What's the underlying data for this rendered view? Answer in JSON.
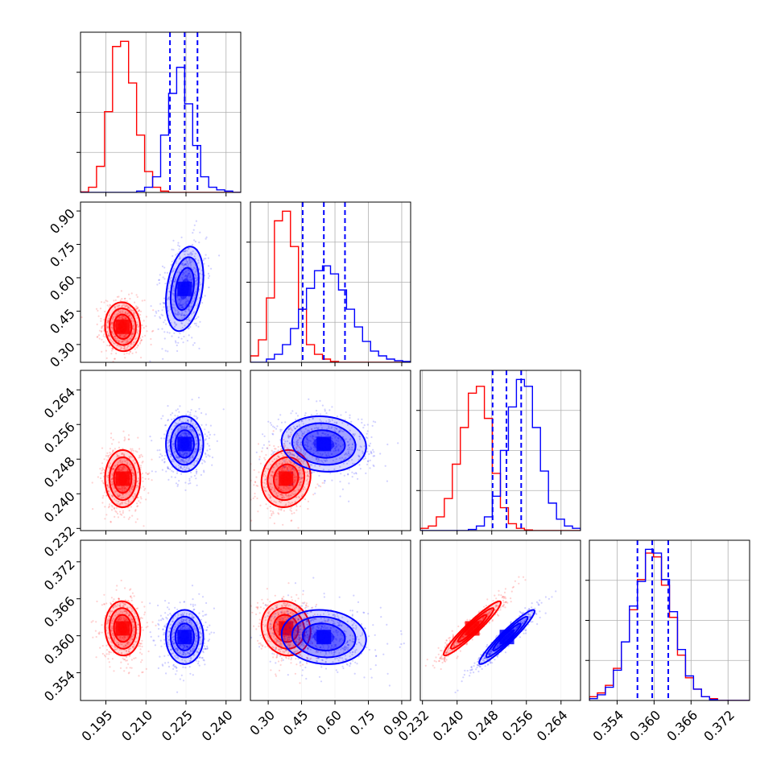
{
  "chart_data": {
    "type": "corner",
    "colors": {
      "red": "#ff0000",
      "blue": "#0000ff",
      "grid": "#b0b0b0"
    },
    "parameters": [
      {
        "range": [
          0.1855,
          0.2455
        ],
        "ticks": [
          "0.195",
          "0.210",
          "0.225",
          "0.240"
        ],
        "tick_values": [
          0.195,
          0.21,
          0.225,
          0.24
        ]
      },
      {
        "range": [
          0.22,
          0.94
        ],
        "ticks": [
          "0.30",
          "0.45",
          "0.60",
          "0.75",
          "0.90"
        ],
        "tick_values": [
          0.3,
          0.45,
          0.6,
          0.75,
          0.9
        ]
      },
      {
        "range": [
          0.2315,
          0.2685
        ],
        "ticks": [
          "0.232",
          "0.240",
          "0.248",
          "0.256",
          "0.264"
        ],
        "tick_values": [
          0.232,
          0.24,
          0.248,
          0.256,
          0.264
        ]
      },
      {
        "range": [
          0.3495,
          0.3755
        ],
        "ticks": [
          "0.354",
          "0.360",
          "0.366",
          "0.372"
        ],
        "tick_values": [
          0.354,
          0.36,
          0.366,
          0.372
        ]
      }
    ],
    "series": [
      {
        "color": "red",
        "mean": [
          0.2013,
          0.38,
          0.2435,
          0.3612
        ],
        "sd": [
          0.0033,
          0.055,
          0.0033,
          0.0022
        ],
        "corr": [
          [
            0,
            1,
            -0.05
          ],
          [
            0,
            2,
            0.0
          ],
          [
            1,
            2,
            0.1
          ],
          [
            0,
            3,
            -0.05
          ],
          [
            1,
            3,
            -0.1
          ],
          [
            2,
            3,
            0.95
          ]
        ],
        "hist": [
          [
            0.2,
            2,
            10,
            31,
            56,
            58,
            42,
            22,
            8,
            2,
            0.5,
            0,
            0,
            0,
            0,
            0,
            0,
            0,
            0,
            0
          ],
          [
            4,
            14,
            40,
            88,
            94,
            72,
            33,
            11,
            5,
            2,
            0.5,
            0,
            0,
            0,
            0,
            0,
            0,
            0,
            0,
            0
          ],
          [
            1,
            2,
            6,
            14,
            29,
            45,
            60,
            63,
            49,
            25,
            10,
            3,
            1,
            0.3,
            0,
            0,
            0,
            0,
            0,
            0
          ],
          [
            2,
            4,
            8,
            17,
            31,
            48,
            64,
            78,
            76,
            61,
            44,
            24,
            12,
            6,
            2,
            1,
            0,
            0,
            0,
            0
          ]
        ]
      },
      {
        "color": "blue",
        "mean": [
          0.2245,
          0.55,
          0.2515,
          0.3598
        ],
        "sd": [
          0.0035,
          0.095,
          0.0032,
          0.0022
        ],
        "corr": [
          [
            0,
            1,
            0.3
          ],
          [
            0,
            2,
            0.0
          ],
          [
            1,
            2,
            -0.1
          ],
          [
            0,
            3,
            0.0
          ],
          [
            1,
            3,
            -0.1
          ],
          [
            2,
            3,
            0.95
          ]
        ],
        "hist": [
          [
            0,
            0,
            0,
            0,
            0,
            0,
            0,
            0.5,
            2,
            6,
            22,
            38,
            48,
            34,
            18,
            6,
            2,
            1,
            0.5,
            0
          ],
          [
            0,
            0,
            2,
            5,
            11,
            21,
            33,
            46,
            57,
            60,
            55,
            45,
            33,
            22,
            13,
            7,
            4,
            2,
            1,
            0.5
          ],
          [
            0,
            0,
            0,
            0,
            0,
            0,
            0.5,
            2,
            6,
            15,
            35,
            54,
            66,
            63,
            45,
            26,
            12,
            5,
            2,
            1
          ],
          [
            1,
            3,
            7,
            16,
            31,
            50,
            63,
            80,
            78,
            64,
            47,
            27,
            13,
            6,
            2,
            0.5,
            0,
            0,
            0,
            0
          ]
        ],
        "quantiles": [
          [
            0.219,
            0.2245,
            0.2293
          ],
          [
            0.455,
            0.55,
            0.645
          ],
          [
            0.2482,
            0.2514,
            0.2548
          ],
          [
            0.3573,
            0.3597,
            0.3623
          ]
        ]
      }
    ]
  }
}
